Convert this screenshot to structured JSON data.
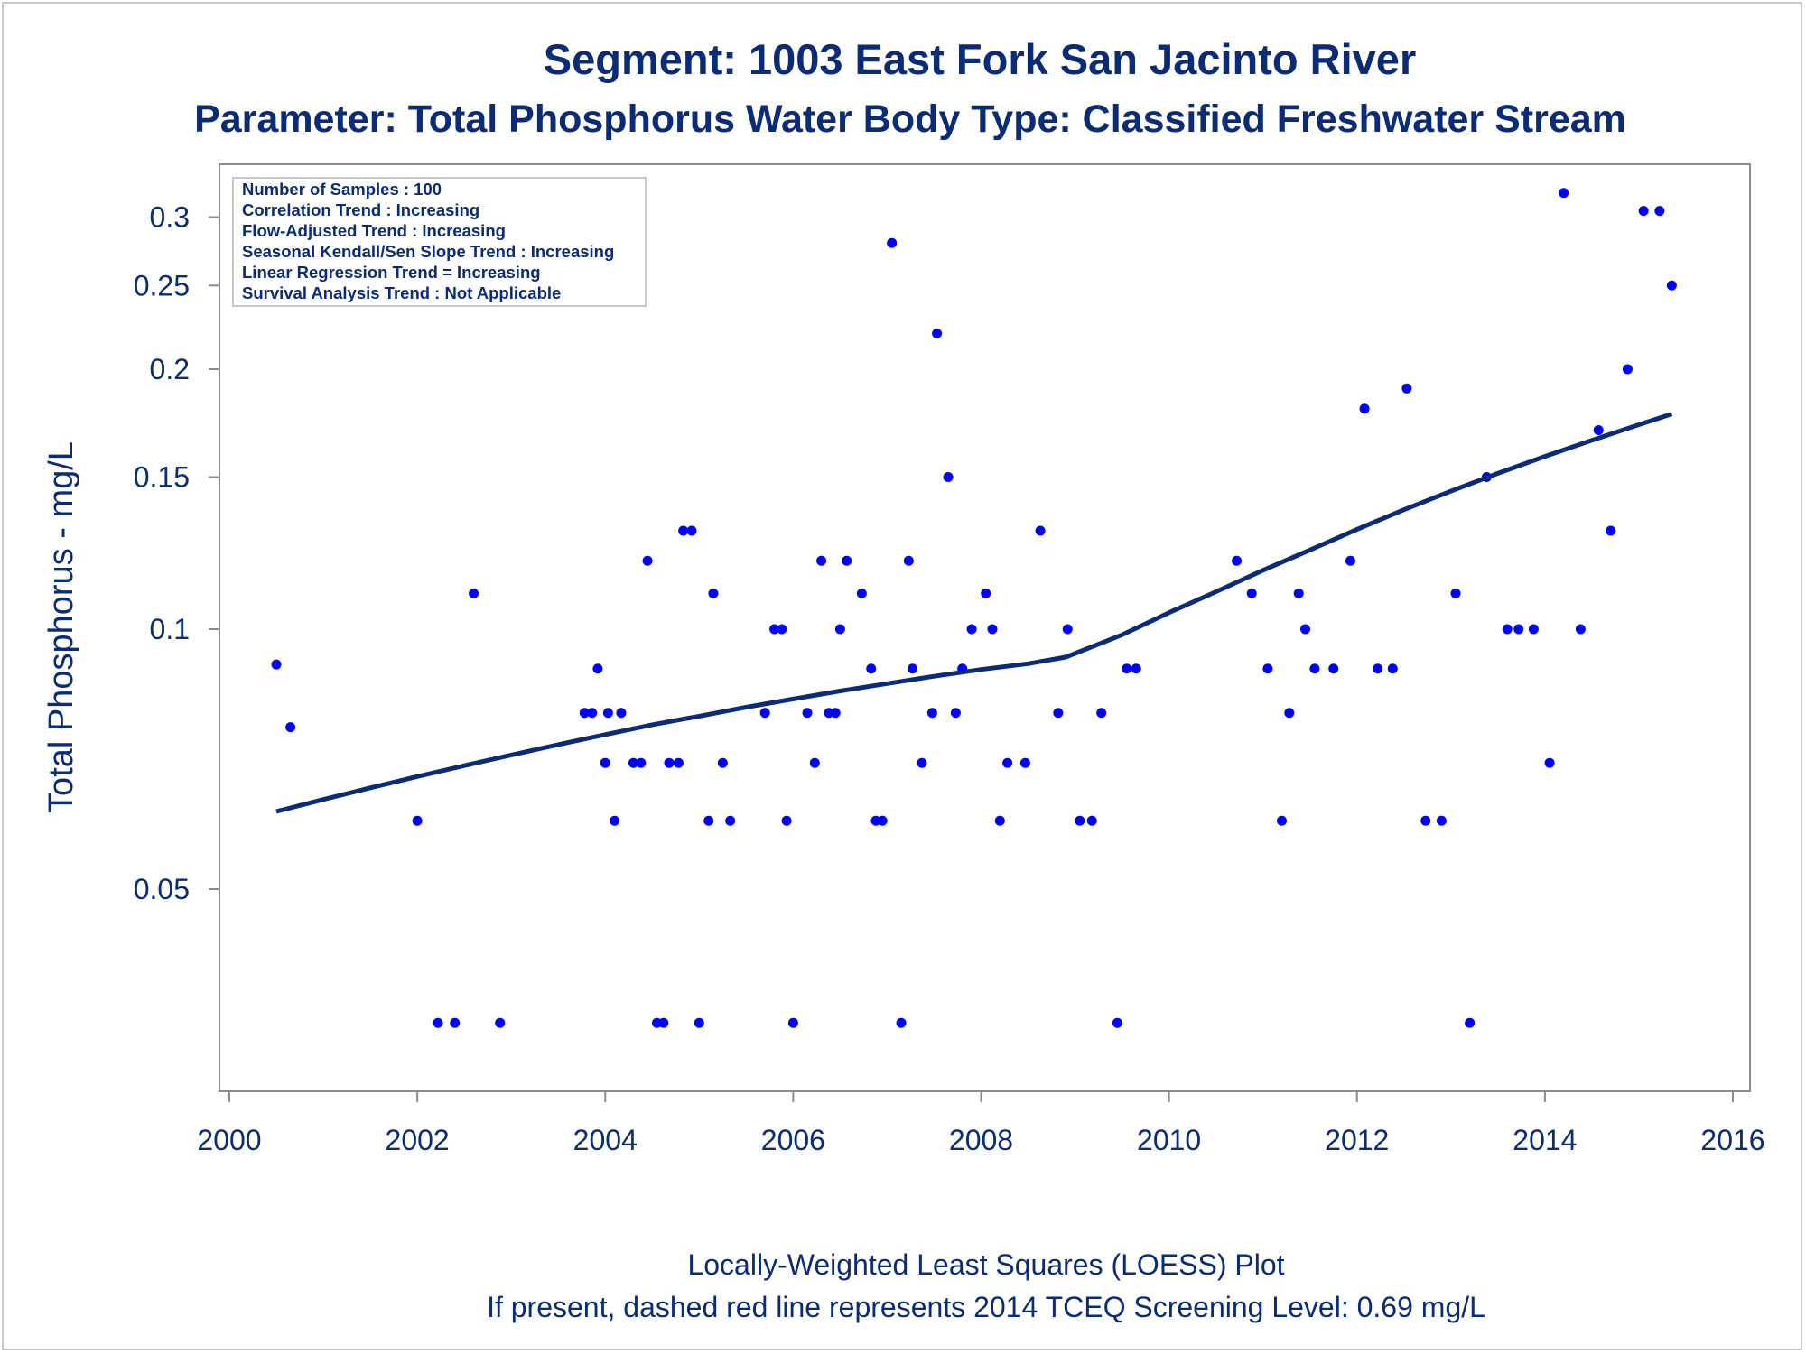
{
  "chart_data": {
    "type": "scatter",
    "title": "Segment: 1003  East Fork San Jacinto River",
    "subtitle": "Parameter: Total Phosphorus   Water Body Type: Classified Freshwater Stream",
    "xlabel": "",
    "ylabel": "Total Phosphorus - mg/L",
    "y_scale": "log",
    "xlim": [
      2000,
      2016
    ],
    "ylim": [
      0.031,
      0.33
    ],
    "x_ticks": [
      "2000",
      "2002",
      "2004",
      "2006",
      "2008",
      "2010",
      "2012",
      "2014",
      "2016"
    ],
    "y_ticks": [
      {
        "value": 0.05,
        "label": "0.05"
      },
      {
        "value": 0.1,
        "label": "0.1"
      },
      {
        "value": 0.15,
        "label": "0.15"
      },
      {
        "value": 0.2,
        "label": "0.2"
      },
      {
        "value": 0.25,
        "label": "0.25"
      },
      {
        "value": 0.3,
        "label": "0.3"
      }
    ],
    "grid": false,
    "legend": "none",
    "point_color": "#0000ff",
    "line_color": "#0a2b78",
    "info_box": {
      "placement": "top-left",
      "lines": [
        "Number of Samples : 100",
        "Correlation Trend : Increasing",
        "Flow-Adjusted Trend : Increasing",
        "Seasonal Kendall/Sen Slope Trend : Increasing",
        "Linear Regression Trend = Increasing",
        "Survival Analysis Trend : Not Applicable"
      ]
    },
    "points": [
      [
        2000.5,
        0.091
      ],
      [
        2000.65,
        0.077
      ],
      [
        2002.0,
        0.06
      ],
      [
        2002.22,
        0.035
      ],
      [
        2002.4,
        0.035
      ],
      [
        2002.6,
        0.11
      ],
      [
        2002.88,
        0.035
      ],
      [
        2003.78,
        0.08
      ],
      [
        2003.86,
        0.08
      ],
      [
        2003.92,
        0.09
      ],
      [
        2004.0,
        0.07
      ],
      [
        2004.03,
        0.08
      ],
      [
        2004.1,
        0.06
      ],
      [
        2004.17,
        0.08
      ],
      [
        2004.3,
        0.07
      ],
      [
        2004.38,
        0.07
      ],
      [
        2004.45,
        0.12
      ],
      [
        2004.55,
        0.035
      ],
      [
        2004.62,
        0.035
      ],
      [
        2004.68,
        0.07
      ],
      [
        2004.78,
        0.07
      ],
      [
        2004.83,
        0.13
      ],
      [
        2004.92,
        0.13
      ],
      [
        2005.0,
        0.035
      ],
      [
        2005.1,
        0.06
      ],
      [
        2005.15,
        0.11
      ],
      [
        2005.25,
        0.07
      ],
      [
        2005.33,
        0.06
      ],
      [
        2005.7,
        0.08
      ],
      [
        2005.8,
        0.1
      ],
      [
        2005.88,
        0.1
      ],
      [
        2005.93,
        0.06
      ],
      [
        2006.0,
        0.035
      ],
      [
        2006.15,
        0.08
      ],
      [
        2006.23,
        0.07
      ],
      [
        2006.3,
        0.12
      ],
      [
        2006.38,
        0.08
      ],
      [
        2006.45,
        0.08
      ],
      [
        2006.5,
        0.1
      ],
      [
        2006.57,
        0.12
      ],
      [
        2006.73,
        0.11
      ],
      [
        2006.83,
        0.09
      ],
      [
        2006.88,
        0.06
      ],
      [
        2006.95,
        0.06
      ],
      [
        2007.05,
        0.28
      ],
      [
        2007.15,
        0.035
      ],
      [
        2007.23,
        0.12
      ],
      [
        2007.27,
        0.09
      ],
      [
        2007.37,
        0.07
      ],
      [
        2007.48,
        0.08
      ],
      [
        2007.53,
        0.22
      ],
      [
        2007.65,
        0.15
      ],
      [
        2007.73,
        0.08
      ],
      [
        2007.8,
        0.09
      ],
      [
        2007.9,
        0.1
      ],
      [
        2008.05,
        0.11
      ],
      [
        2008.12,
        0.1
      ],
      [
        2008.2,
        0.06
      ],
      [
        2008.28,
        0.07
      ],
      [
        2008.47,
        0.07
      ],
      [
        2008.63,
        0.13
      ],
      [
        2008.82,
        0.08
      ],
      [
        2008.92,
        0.1
      ],
      [
        2009.05,
        0.06
      ],
      [
        2009.18,
        0.06
      ],
      [
        2009.28,
        0.08
      ],
      [
        2009.45,
        0.035
      ],
      [
        2009.55,
        0.09
      ],
      [
        2009.65,
        0.09
      ],
      [
        2010.72,
        0.12
      ],
      [
        2010.88,
        0.11
      ],
      [
        2011.05,
        0.09
      ],
      [
        2011.2,
        0.06
      ],
      [
        2011.28,
        0.08
      ],
      [
        2011.38,
        0.11
      ],
      [
        2011.45,
        0.1
      ],
      [
        2011.55,
        0.09
      ],
      [
        2011.75,
        0.09
      ],
      [
        2011.93,
        0.12
      ],
      [
        2012.08,
        0.18
      ],
      [
        2012.22,
        0.09
      ],
      [
        2012.38,
        0.09
      ],
      [
        2012.53,
        0.19
      ],
      [
        2012.73,
        0.06
      ],
      [
        2012.9,
        0.06
      ],
      [
        2013.05,
        0.11
      ],
      [
        2013.2,
        0.035
      ],
      [
        2013.38,
        0.15
      ],
      [
        2013.6,
        0.1
      ],
      [
        2013.72,
        0.1
      ],
      [
        2013.88,
        0.1
      ],
      [
        2014.05,
        0.07
      ],
      [
        2014.2,
        0.32
      ],
      [
        2014.38,
        0.1
      ],
      [
        2014.57,
        0.17
      ],
      [
        2014.7,
        0.13
      ],
      [
        2014.88,
        0.2
      ],
      [
        2015.05,
        0.305
      ],
      [
        2015.22,
        0.305
      ],
      [
        2015.35,
        0.25
      ]
    ],
    "loess_line": [
      [
        2000.5,
        0.0615
      ],
      [
        2001.0,
        0.0635
      ],
      [
        2001.5,
        0.0655
      ],
      [
        2002.0,
        0.0675
      ],
      [
        2002.5,
        0.0695
      ],
      [
        2003.0,
        0.0715
      ],
      [
        2003.5,
        0.0735
      ],
      [
        2004.0,
        0.0755
      ],
      [
        2004.5,
        0.0775
      ],
      [
        2005.0,
        0.0793
      ],
      [
        2005.5,
        0.0812
      ],
      [
        2006.0,
        0.083
      ],
      [
        2006.5,
        0.0848
      ],
      [
        2007.0,
        0.0865
      ],
      [
        2007.5,
        0.0882
      ],
      [
        2008.0,
        0.0898
      ],
      [
        2008.5,
        0.0912
      ],
      [
        2008.9,
        0.0928
      ],
      [
        2009.5,
        0.0985
      ],
      [
        2010.0,
        0.1045
      ],
      [
        2010.5,
        0.1105
      ],
      [
        2011.0,
        0.117
      ],
      [
        2011.5,
        0.1235
      ],
      [
        2012.0,
        0.1305
      ],
      [
        2012.5,
        0.1375
      ],
      [
        2013.0,
        0.1445
      ],
      [
        2013.5,
        0.1515
      ],
      [
        2014.0,
        0.1585
      ],
      [
        2014.5,
        0.1655
      ],
      [
        2015.0,
        0.1725
      ],
      [
        2015.35,
        0.1775
      ]
    ],
    "footer": [
      "Locally-Weighted Least Squares (LOESS) Plot",
      "If present, dashed red line represents 2014 TCEQ Screening Level: 0.69 mg/L"
    ]
  }
}
